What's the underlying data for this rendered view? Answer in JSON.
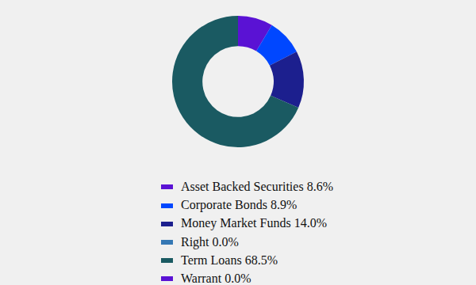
{
  "chart_data": {
    "type": "pie",
    "categories": [
      "Asset Backed Securities 8.6%",
      "Corporate Bonds 8.9%",
      "Money Market Funds 14.0%",
      "Right 0.0%",
      "Term Loans 68.5%",
      "Warrant 0.0%"
    ],
    "values": [
      8.6,
      8.9,
      14.0,
      0.0,
      68.5,
      0.0
    ],
    "colors": [
      "#5a12d4",
      "#0047ff",
      "#1c1f8e",
      "#3578b4",
      "#1a5a62",
      "#5a12d4"
    ]
  }
}
